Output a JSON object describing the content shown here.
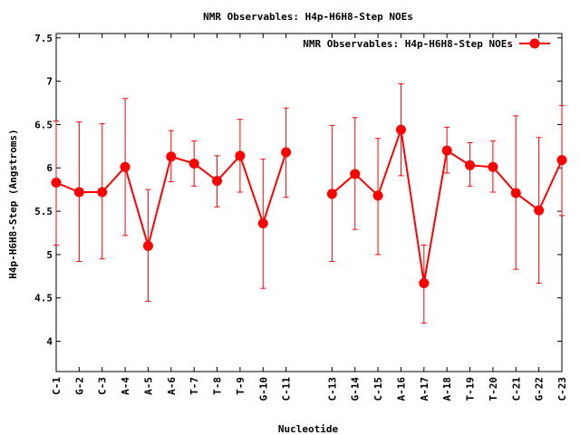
{
  "chart_data": {
    "type": "line",
    "title": "NMR Observables: H4p-H6H8-Step NOEs",
    "xlabel": "Nucleotide",
    "ylabel": "H4p-H6H8-Step (Angstroms)",
    "ylim": [
      3.65,
      7.55
    ],
    "y_ticks": [
      "4",
      "4.5",
      "5",
      "5.5",
      "6",
      "6.5",
      "7",
      "7.5"
    ],
    "y_tick_values": [
      4,
      4.5,
      5,
      5.5,
      6,
      6.5,
      7,
      7.5
    ],
    "legend": {
      "label": "NMR Observables: H4p-H6H8-Step NOEs",
      "position": "top-right"
    },
    "grid": false,
    "color": "#ff0000",
    "series": [
      {
        "name": "NMR Observables: H4p-H6H8-Step NOEs",
        "segments": [
          [
            {
              "x": "C-1",
              "y": 5.83,
              "ylow": 5.11,
              "yhigh": 6.54
            },
            {
              "x": "G-2",
              "y": 5.72,
              "ylow": 4.92,
              "yhigh": 6.53
            },
            {
              "x": "C-3",
              "y": 5.72,
              "ylow": 4.95,
              "yhigh": 6.51
            },
            {
              "x": "A-4",
              "y": 6.01,
              "ylow": 5.22,
              "yhigh": 6.8
            },
            {
              "x": "A-5",
              "y": 5.1,
              "ylow": 4.46,
              "yhigh": 5.75
            },
            {
              "x": "A-6",
              "y": 6.13,
              "ylow": 5.84,
              "yhigh": 6.43
            },
            {
              "x": "T-7",
              "y": 6.05,
              "ylow": 5.79,
              "yhigh": 6.31
            },
            {
              "x": "T-8",
              "y": 5.85,
              "ylow": 5.55,
              "yhigh": 6.14
            },
            {
              "x": "T-9",
              "y": 6.14,
              "ylow": 5.72,
              "yhigh": 6.56
            },
            {
              "x": "G-10",
              "y": 5.36,
              "ylow": 4.61,
              "yhigh": 6.1
            },
            {
              "x": "C-11",
              "y": 6.18,
              "ylow": 5.66,
              "yhigh": 6.69
            }
          ],
          [
            {
              "x": "C-13",
              "y": 5.7,
              "ylow": 4.92,
              "yhigh": 6.49
            },
            {
              "x": "G-14",
              "y": 5.93,
              "ylow": 5.29,
              "yhigh": 6.58
            },
            {
              "x": "C-15",
              "y": 5.68,
              "ylow": 5.0,
              "yhigh": 6.34
            },
            {
              "x": "A-16",
              "y": 6.44,
              "ylow": 5.91,
              "yhigh": 6.97
            },
            {
              "x": "A-17",
              "y": 4.67,
              "ylow": 4.21,
              "yhigh": 5.11
            },
            {
              "x": "A-18",
              "y": 6.2,
              "ylow": 5.94,
              "yhigh": 6.47
            },
            {
              "x": "T-19",
              "y": 6.03,
              "ylow": 5.79,
              "yhigh": 6.29
            },
            {
              "x": "T-20",
              "y": 6.01,
              "ylow": 5.72,
              "yhigh": 6.31
            },
            {
              "x": "C-21",
              "y": 5.71,
              "ylow": 4.83,
              "yhigh": 6.6
            },
            {
              "x": "G-22",
              "y": 5.51,
              "ylow": 4.67,
              "yhigh": 6.35
            },
            {
              "x": "C-23",
              "y": 6.09,
              "ylow": 5.45,
              "yhigh": 6.72
            }
          ]
        ]
      }
    ],
    "x_ticks": [
      "C-1",
      "G-2",
      "C-3",
      "A-4",
      "A-5",
      "A-6",
      "T-7",
      "T-8",
      "T-9",
      "G-10",
      "C-11",
      "C-13",
      "G-14",
      "C-15",
      "A-16",
      "A-17",
      "A-18",
      "T-19",
      "T-20",
      "C-21",
      "G-22",
      "C-23"
    ],
    "x_tick_positions": [
      1,
      2,
      3,
      4,
      5,
      6,
      7,
      8,
      9,
      10,
      11,
      13,
      14,
      15,
      16,
      17,
      18,
      19,
      20,
      21,
      22,
      23
    ],
    "xlim": [
      1,
      23
    ]
  }
}
